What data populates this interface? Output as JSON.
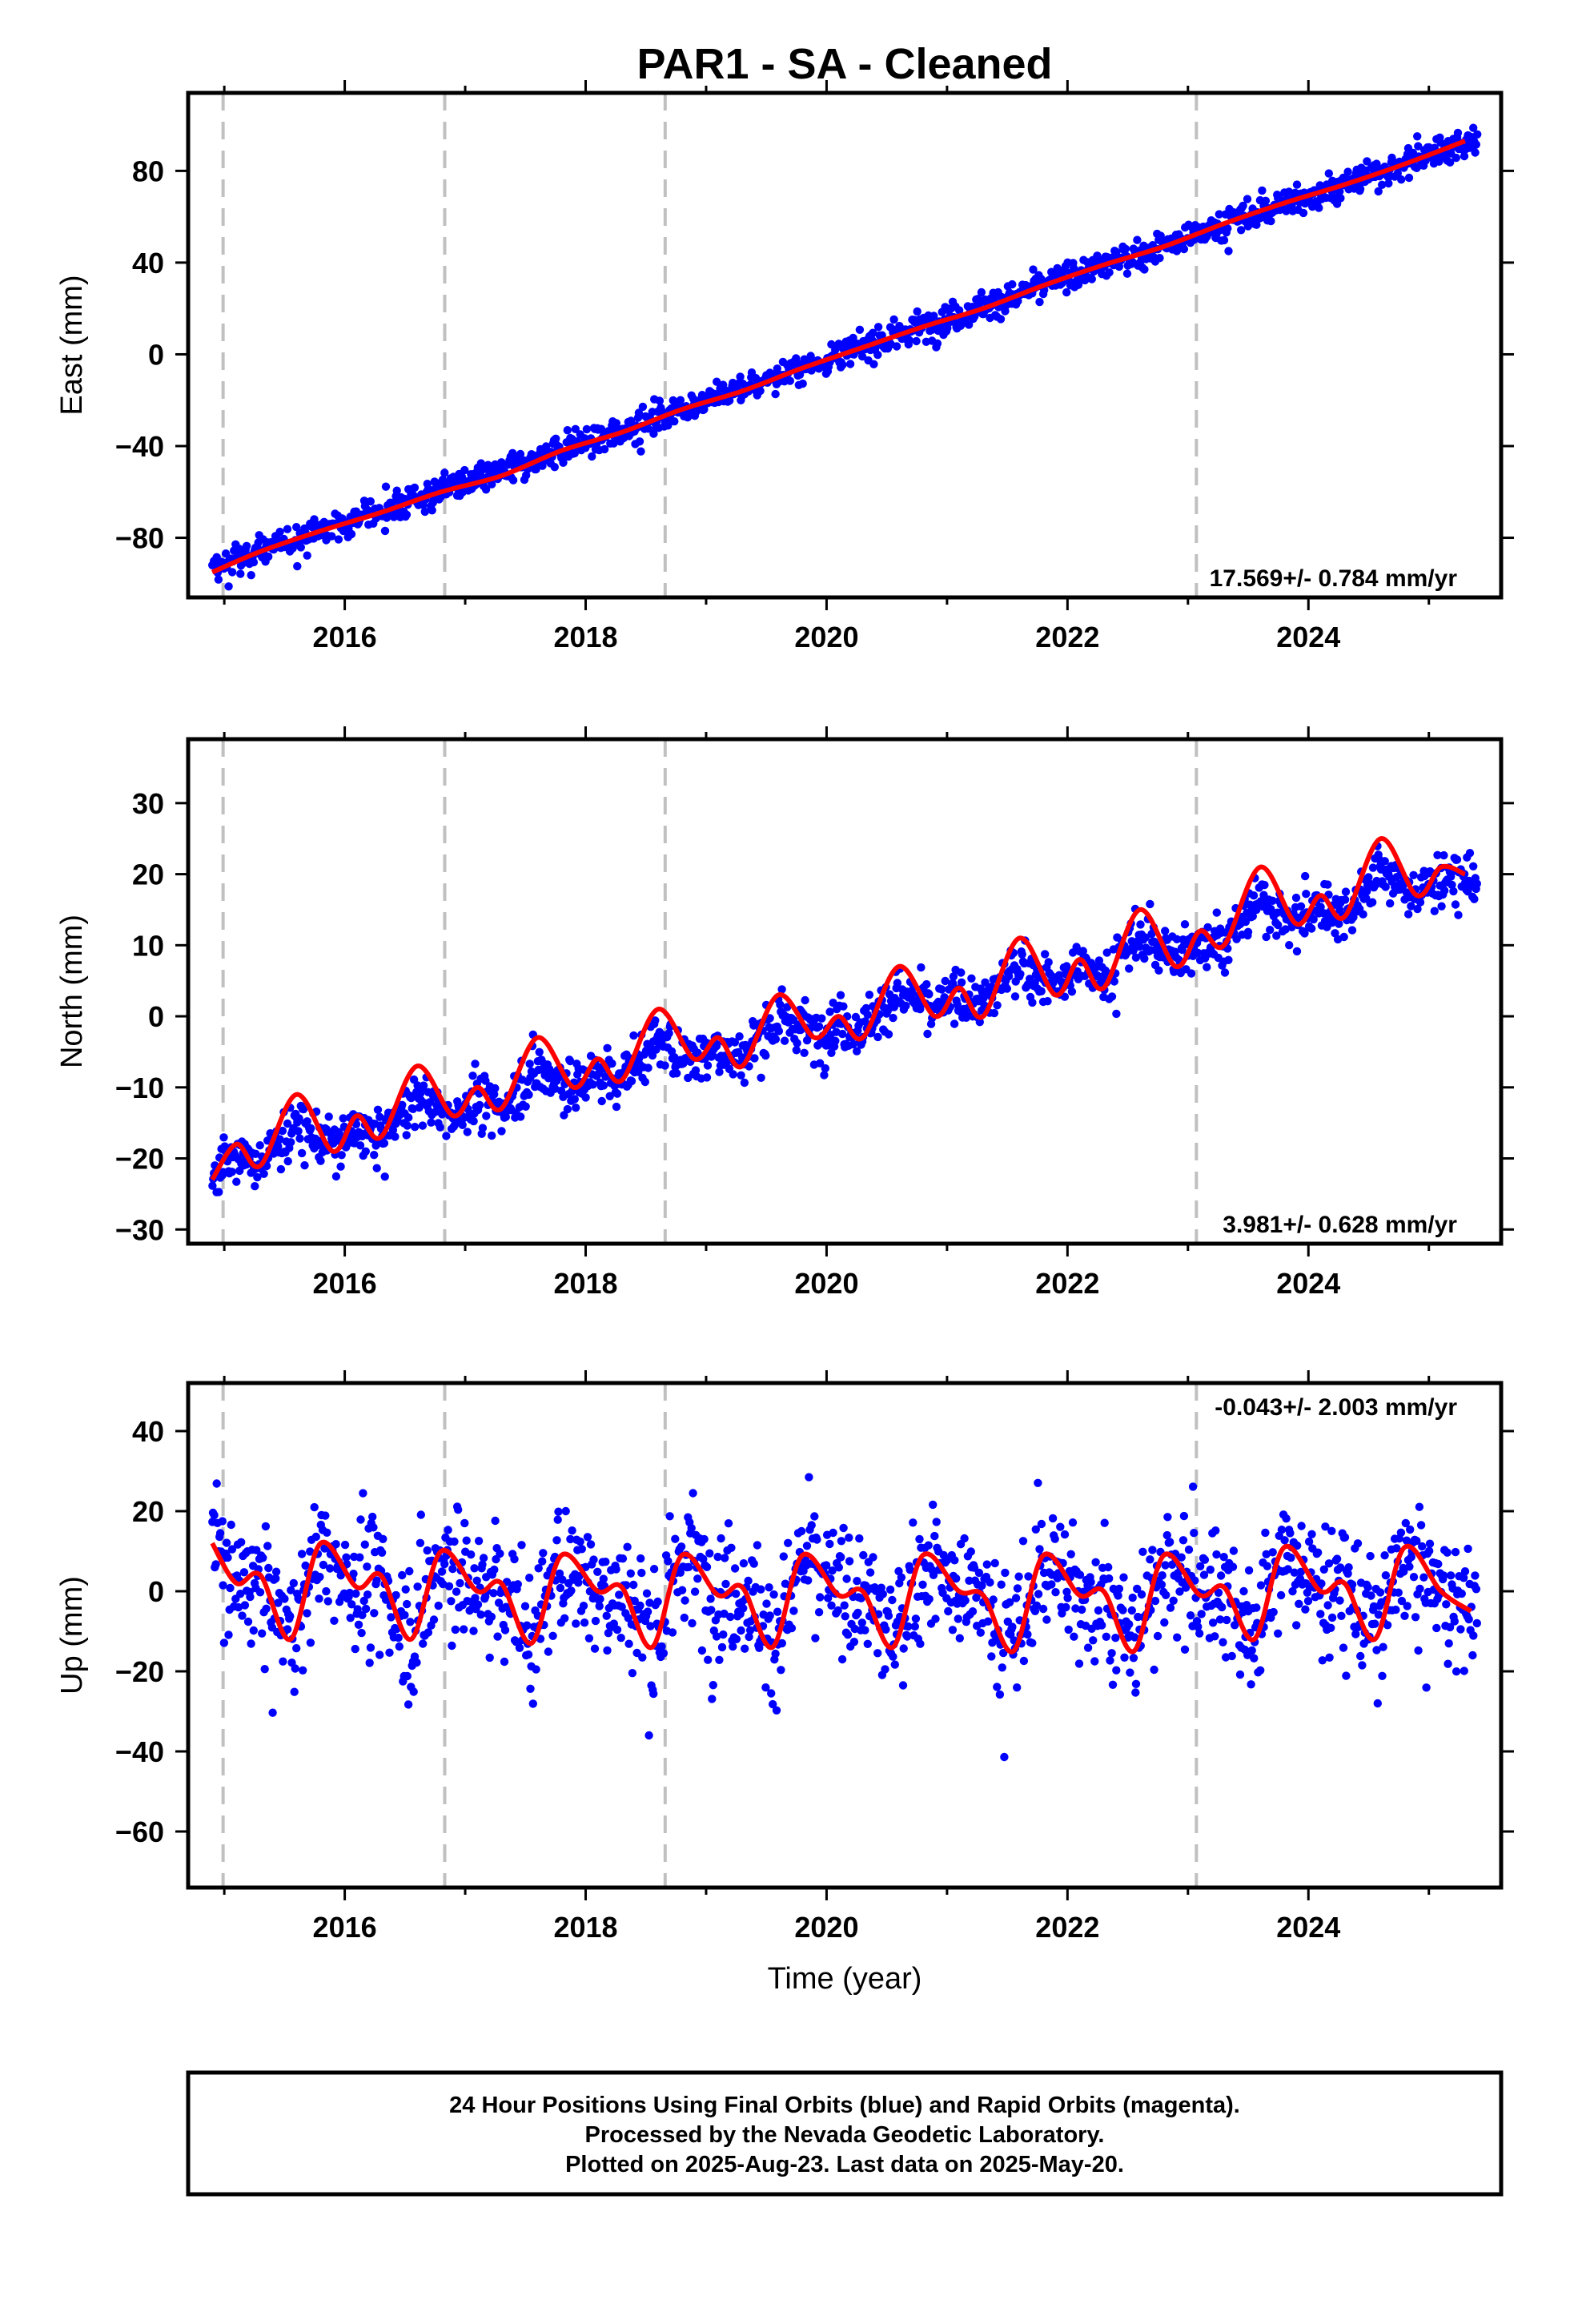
{
  "title": "PAR1  - SA - Cleaned",
  "xlabel": "Time (year)",
  "footer": {
    "line1": "24 Hour Positions Using Final Orbits (blue) and Rapid Orbits (magenta).",
    "line2": "Processed by the Nevada Geodetic Laboratory.",
    "line3": "Plotted on 2025-Aug-23. Last data on 2025-May-20."
  },
  "colors": {
    "points": "#0000ff",
    "fit": "#ff0000",
    "steps": "#c0c0c0"
  },
  "chart_data": [
    {
      "type": "scatter",
      "component": "east",
      "ylabel": "East (mm)",
      "rate_label": "17.569+/- 0.784 mm/yr",
      "xlim": [
        2014.7,
        2025.6
      ],
      "ylim": [
        -106,
        114
      ],
      "xticks": [
        2016,
        2018,
        2020,
        2022,
        2024
      ],
      "yticks": [
        -80,
        -40,
        0,
        40,
        80
      ],
      "grid": false,
      "legend": "none",
      "step_epochs": [
        2014.99,
        2016.83,
        2018.66,
        2023.07
      ],
      "fit_series": {
        "name": "",
        "x": [
          2014.9,
          2015.3,
          2015.8,
          2016.3,
          2016.8,
          2017.3,
          2017.8,
          2018.3,
          2018.8,
          2019.3,
          2019.8,
          2020.3,
          2020.8,
          2021.3,
          2021.8,
          2022.3,
          2022.8,
          2023.3,
          2023.8,
          2024.3,
          2024.8,
          2025.3
        ],
        "values": [
          -95,
          -86,
          -77,
          -69,
          -60,
          -53,
          -42,
          -34,
          -24,
          -16,
          -6,
          3,
          12,
          20,
          30,
          39,
          47,
          57,
          66,
          74,
          83,
          93
        ]
      },
      "scatter_summary": {
        "start": 2014.9,
        "end": 2025.4,
        "trend": [
          -93,
          94
        ],
        "scatter_mm": 5.5,
        "seasonal_mm": 2.5
      }
    },
    {
      "type": "scatter",
      "component": "north",
      "ylabel": "North (mm)",
      "rate_label": "3.981+/- 0.628 mm/yr",
      "xlim": [
        2014.7,
        2025.6
      ],
      "ylim": [
        -32,
        39
      ],
      "xticks": [
        2016,
        2018,
        2020,
        2022,
        2024
      ],
      "yticks": [
        -30,
        -20,
        -10,
        0,
        10,
        20,
        30
      ],
      "grid": false,
      "legend": "none",
      "step_epochs": [
        2014.99,
        2016.83,
        2018.66,
        2023.07
      ],
      "fit_series": {
        "name": "",
        "x": [
          2014.9,
          2015.1,
          2015.3,
          2015.6,
          2015.9,
          2016.1,
          2016.3,
          2016.6,
          2016.9,
          2017.1,
          2017.3,
          2017.6,
          2017.9,
          2018.1,
          2018.3,
          2018.6,
          2018.9,
          2019.1,
          2019.3,
          2019.6,
          2019.9,
          2020.1,
          2020.3,
          2020.6,
          2020.9,
          2021.1,
          2021.3,
          2021.6,
          2021.9,
          2022.1,
          2022.3,
          2022.6,
          2022.9,
          2023.1,
          2023.3,
          2023.6,
          2023.9,
          2024.1,
          2024.3,
          2024.6,
          2024.9,
          2025.1,
          2025.3
        ],
        "values": [
          -23,
          -18,
          -21,
          -11,
          -19,
          -14,
          -17,
          -7,
          -14,
          -10,
          -13,
          -3,
          -10,
          -6,
          -9,
          1,
          -6,
          -3,
          -7,
          3,
          -3,
          0,
          -3,
          7,
          0,
          4,
          0,
          11,
          3,
          8,
          4,
          15,
          7,
          12,
          10,
          21,
          13,
          17,
          14,
          25,
          17,
          21,
          20
        ]
      },
      "scatter_summary": {
        "start": 2014.9,
        "end": 2025.4,
        "trend": [
          -22,
          19
        ],
        "scatter_mm": 3.2,
        "seasonal_mm": 5
      }
    },
    {
      "type": "scatter",
      "component": "up",
      "ylabel": "Up (mm)",
      "rate_label": "-0.043+/- 2.003 mm/yr",
      "xlim": [
        2014.7,
        2025.6
      ],
      "ylim": [
        -74,
        52
      ],
      "xticks": [
        2016,
        2018,
        2020,
        2022,
        2024
      ],
      "yticks": [
        -60,
        -40,
        -20,
        0,
        20,
        40
      ],
      "grid": false,
      "legend": "none",
      "step_epochs": [
        2014.99,
        2016.83,
        2018.66,
        2023.07
      ],
      "fit_series": {
        "name": "",
        "x": [
          2014.9,
          2015.1,
          2015.3,
          2015.55,
          2015.8,
          2016.1,
          2016.3,
          2016.55,
          2016.8,
          2017.1,
          2017.3,
          2017.55,
          2017.8,
          2018.1,
          2018.3,
          2018.55,
          2018.8,
          2019.1,
          2019.3,
          2019.55,
          2019.8,
          2020.1,
          2020.3,
          2020.55,
          2020.8,
          2021.1,
          2021.3,
          2021.55,
          2021.8,
          2022.1,
          2022.3,
          2022.55,
          2022.8,
          2023.1,
          2023.3,
          2023.55,
          2023.8,
          2024.1,
          2024.3,
          2024.55,
          2024.8,
          2025.1,
          2025.35
        ],
        "values": [
          12,
          2,
          4,
          -12,
          12,
          1,
          4,
          -12,
          10,
          0,
          2,
          -13,
          9,
          0,
          1,
          -14,
          9,
          -1,
          1,
          -14,
          9,
          -1,
          0,
          -14,
          9,
          0,
          -1,
          -15,
          9,
          -1,
          0,
          -15,
          9,
          -1,
          1,
          -12,
          11,
          0,
          2,
          -12,
          11,
          0,
          -5
        ]
      },
      "scatter_summary": {
        "start": 2014.9,
        "end": 2025.4,
        "trend": [
          0,
          0
        ],
        "scatter_mm": 14,
        "seasonal_mm": 10
      }
    }
  ]
}
